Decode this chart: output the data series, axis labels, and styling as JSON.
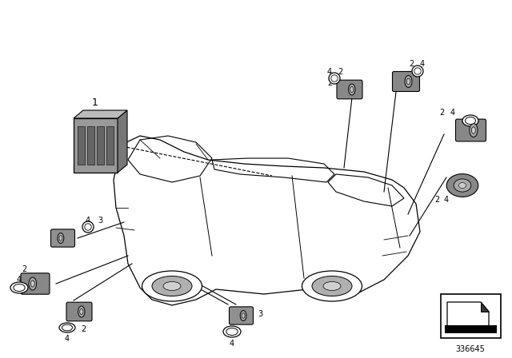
{
  "bg_color": "#ffffff",
  "line_color": "#000000",
  "diagram_number": "336645",
  "car_body_color": "#cccccc",
  "sensor_color": "#909090",
  "module_color": "#888888"
}
